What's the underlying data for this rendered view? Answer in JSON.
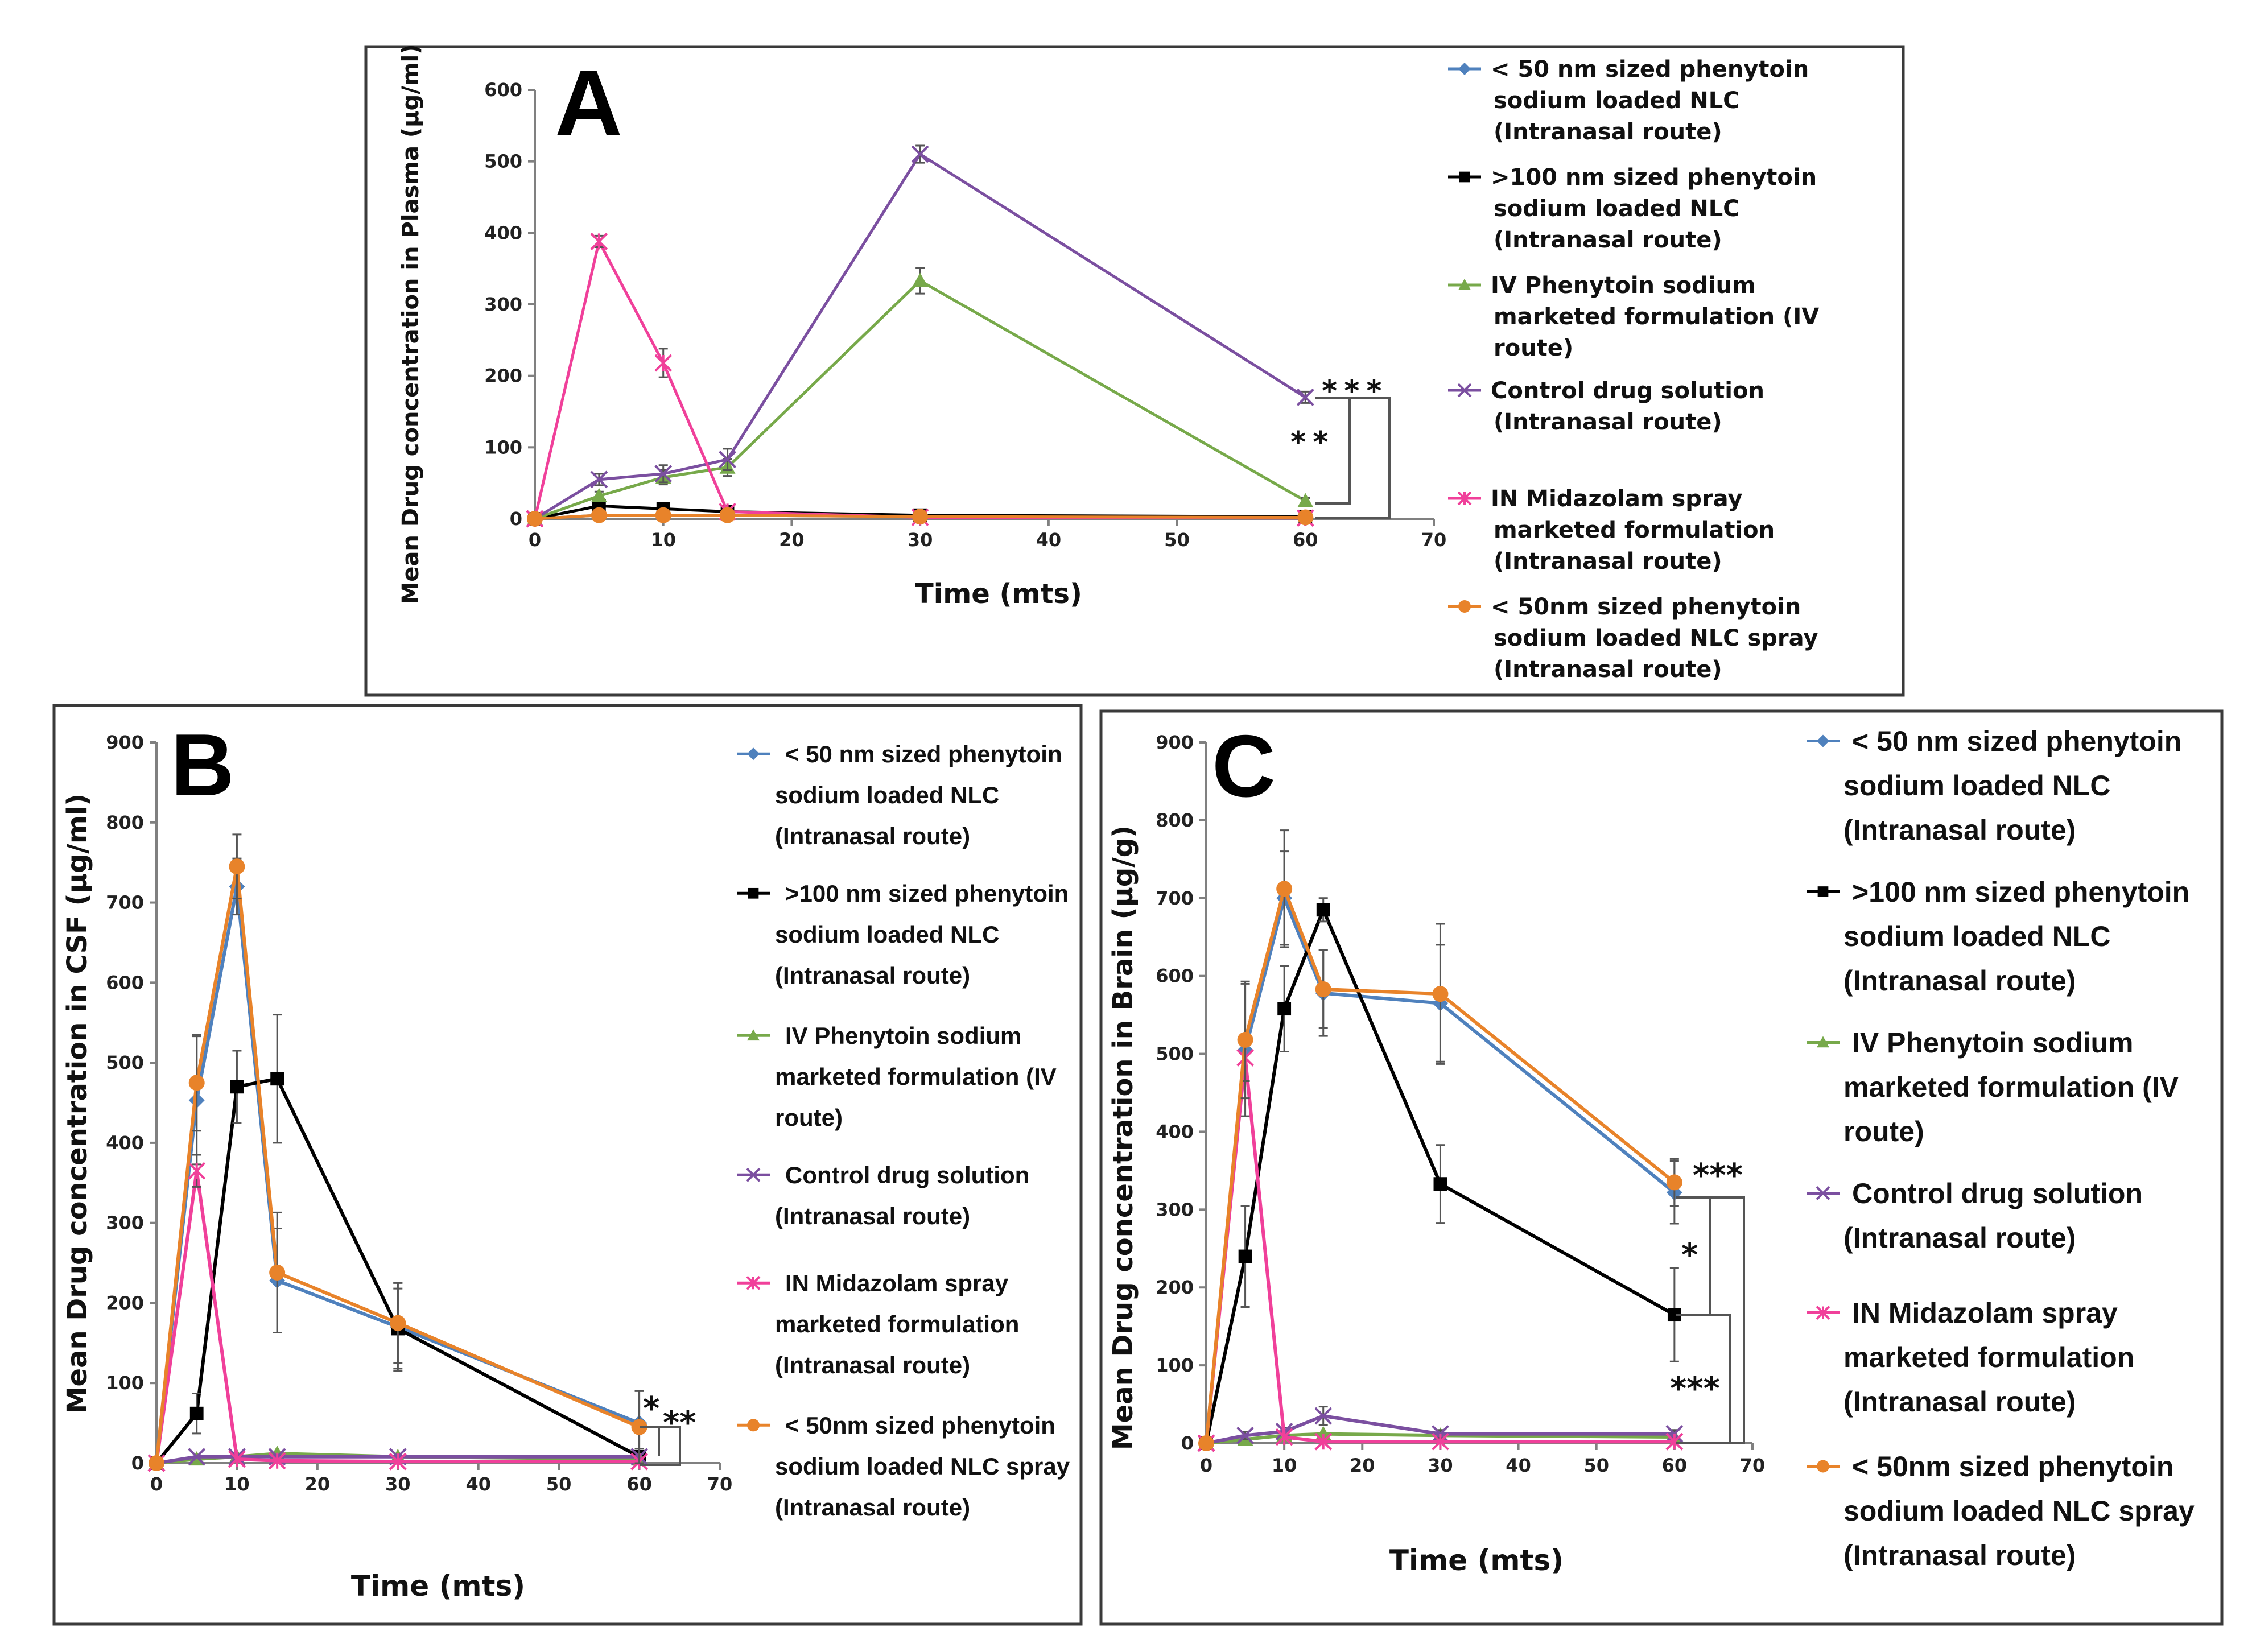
{
  "series_styles": [
    {
      "key": "s50",
      "color": "#4F81BD",
      "marker": "diamond"
    },
    {
      "key": "s100",
      "color": "#000000",
      "marker": "square"
    },
    {
      "key": "iv",
      "color": "#77A94A",
      "marker": "triangle"
    },
    {
      "key": "ctrl",
      "color": "#7B4FA0",
      "marker": "x"
    },
    {
      "key": "mid",
      "color": "#F0409A",
      "marker": "star"
    },
    {
      "key": "spray",
      "color": "#E8832A",
      "marker": "circle"
    }
  ],
  "chart_data": [
    {
      "panel": "A",
      "type": "line",
      "xlabel": "Time (mts)",
      "ylabel": "Mean Drug concentration in Plasma (µg/ml)",
      "xlim": [
        0,
        70
      ],
      "ylim": [
        0,
        600
      ],
      "xticks": [
        0,
        10,
        20,
        30,
        40,
        50,
        60,
        70
      ],
      "yticks": [
        0,
        100,
        200,
        300,
        400,
        500,
        600
      ],
      "legend": [
        [
          "< 50 nm sized phenytoin",
          "sodium loaded NLC",
          "(Intranasal route)"
        ],
        [
          ">100 nm sized phenytoin",
          "sodium loaded NLC",
          "(Intranasal route)"
        ],
        [
          "IV Phenytoin sodium",
          "marketed formulation (IV",
          "route)"
        ],
        [
          "Control drug solution",
          "(Intranasal route)"
        ],
        [
          "IN Midazolam spray",
          "marketed formulation",
          "(Intranasal route)"
        ],
        [
          "< 50nm sized phenytoin",
          "sodium loaded NLC spray",
          "(Intranasal route)"
        ]
      ],
      "series": [
        {
          "name": "< 50 nm sized phenytoin sodium loaded NLC (Intranasal route)",
          "x": [
            0,
            5,
            10,
            15,
            30,
            60
          ],
          "y": [
            0,
            5,
            5,
            5,
            3,
            2
          ]
        },
        {
          "name": ">100 nm sized phenytoin sodium loaded NLC (Intranasal route)",
          "x": [
            0,
            5,
            10,
            15,
            30,
            60
          ],
          "y": [
            0,
            18,
            14,
            10,
            5,
            3
          ]
        },
        {
          "name": "IV Phenytoin sodium marketed formulation (IV route)",
          "x": [
            0,
            5,
            10,
            15,
            30,
            60
          ],
          "y": [
            0,
            32,
            58,
            72,
            333,
            25
          ],
          "err": [
            0,
            6,
            10,
            12,
            18,
            4
          ]
        },
        {
          "name": "Control drug solution (Intranasal route)",
          "x": [
            0,
            5,
            10,
            15,
            30,
            60
          ],
          "y": [
            0,
            55,
            63,
            83,
            510,
            170
          ],
          "err": [
            0,
            8,
            12,
            15,
            12,
            8
          ]
        },
        {
          "name": "IN Midazolam spray marketed formulation (Intranasal route)",
          "x": [
            0,
            5,
            10,
            15,
            30,
            60
          ],
          "y": [
            0,
            388,
            218,
            10,
            2,
            1
          ],
          "err": [
            0,
            8,
            20,
            5,
            0,
            0
          ]
        },
        {
          "name": "< 50nm sized phenytoin sodium loaded NLC spray (Intranasal route)",
          "x": [
            0,
            5,
            10,
            15,
            30,
            60
          ],
          "y": [
            0,
            5,
            5,
            5,
            3,
            2
          ]
        }
      ],
      "significance": [
        "***",
        "**"
      ]
    },
    {
      "panel": "B",
      "type": "line",
      "xlabel": "Time (mts)",
      "ylabel": "Mean Drug concentration in CSF (µg/ml)",
      "xlim": [
        0,
        70
      ],
      "ylim": [
        0,
        900
      ],
      "xticks": [
        0,
        10,
        20,
        30,
        40,
        50,
        60,
        70
      ],
      "yticks": [
        0,
        100,
        200,
        300,
        400,
        500,
        600,
        700,
        800,
        900
      ],
      "legend": [
        [
          "< 50 nm sized phenytoin",
          "sodium loaded NLC",
          "(Intranasal route)"
        ],
        [
          ">100 nm sized phenytoin",
          "sodium loaded NLC",
          "(Intranasal route)"
        ],
        [
          "IV Phenytoin sodium",
          "marketed formulation (IV",
          "route)"
        ],
        [
          "Control drug solution",
          "(Intranasal route)"
        ],
        [
          "IN Midazolam spray",
          "marketed formulation",
          "(Intranasal route)"
        ],
        [
          "< 50nm sized phenytoin",
          "sodium loaded NLC spray",
          "(Intranasal route)"
        ]
      ],
      "series": [
        {
          "name": "< 50 nm sized phenytoin sodium loaded NLC (Intranasal route)",
          "x": [
            0,
            5,
            10,
            15,
            30,
            60
          ],
          "y": [
            0,
            453,
            720,
            228,
            170,
            50
          ],
          "err": [
            0,
            80,
            35,
            65,
            55,
            40
          ]
        },
        {
          "name": ">100 nm sized phenytoin sodium loaded NLC (Intranasal route)",
          "x": [
            0,
            5,
            10,
            15,
            30,
            60
          ],
          "y": [
            0,
            62,
            470,
            480,
            168,
            8
          ],
          "err": [
            0,
            25,
            45,
            80,
            50,
            10
          ]
        },
        {
          "name": "IV Phenytoin sodium marketed formulation (IV route)",
          "x": [
            0,
            5,
            10,
            15,
            30,
            60
          ],
          "y": [
            0,
            5,
            8,
            12,
            8,
            5
          ]
        },
        {
          "name": "Control drug solution (Intranasal route)",
          "x": [
            0,
            5,
            10,
            15,
            30,
            60
          ],
          "y": [
            0,
            8,
            8,
            8,
            8,
            8
          ]
        },
        {
          "name": "IN Midazolam spray marketed formulation (Intranasal route)",
          "x": [
            0,
            5,
            10,
            15,
            30,
            60
          ],
          "y": [
            0,
            365,
            5,
            3,
            2,
            2
          ],
          "err": [
            0,
            20,
            0,
            0,
            0,
            0
          ]
        },
        {
          "name": "< 50nm sized phenytoin sodium loaded NLC spray (Intranasal route)",
          "x": [
            0,
            5,
            10,
            15,
            30,
            60
          ],
          "y": [
            0,
            475,
            745,
            238,
            175,
            45
          ],
          "err": [
            0,
            60,
            40,
            75,
            50,
            45
          ]
        }
      ],
      "significance": [
        "*",
        "**"
      ]
    },
    {
      "panel": "C",
      "type": "line",
      "xlabel": "Time (mts)",
      "ylabel": "Mean Drug concentration in Brain (µg/g)",
      "xlim": [
        0,
        70
      ],
      "ylim": [
        0,
        900
      ],
      "xticks": [
        0,
        10,
        20,
        30,
        40,
        50,
        60,
        70
      ],
      "yticks": [
        0,
        100,
        200,
        300,
        400,
        500,
        600,
        700,
        800,
        900
      ],
      "legend": [
        [
          "< 50 nm sized phenytoin",
          "sodium loaded NLC",
          "(Intranasal route)"
        ],
        [
          ">100 nm sized phenytoin",
          "sodium loaded NLC",
          "(Intranasal route)"
        ],
        [
          "IV Phenytoin sodium",
          "marketed formulation (IV",
          "route)"
        ],
        [
          "Control drug solution",
          "(Intranasal route)"
        ],
        [
          "IN Midazolam spray",
          "marketed formulation",
          "(Intranasal route)"
        ],
        [
          "< 50nm sized phenytoin",
          "sodium loaded NLC spray",
          "(Intranasal route)"
        ]
      ],
      "series": [
        {
          "name": "< 50 nm sized phenytoin sodium loaded NLC (Intranasal route)",
          "x": [
            0,
            5,
            10,
            15,
            30,
            60
          ],
          "y": [
            0,
            505,
            700,
            578,
            565,
            322
          ],
          "err": [
            0,
            85,
            60,
            55,
            75,
            40
          ]
        },
        {
          "name": ">100 nm sized phenytoin sodium loaded NLC (Intranasal route)",
          "x": [
            0,
            5,
            10,
            15,
            30,
            60
          ],
          "y": [
            0,
            240,
            558,
            685,
            333,
            165
          ],
          "err": [
            0,
            65,
            55,
            15,
            50,
            60
          ]
        },
        {
          "name": "IV Phenytoin sodium marketed formulation (IV route)",
          "x": [
            0,
            5,
            10,
            15,
            30,
            60
          ],
          "y": [
            0,
            5,
            10,
            12,
            10,
            8
          ]
        },
        {
          "name": "Control drug solution (Intranasal route)",
          "x": [
            0,
            5,
            10,
            15,
            30,
            60
          ],
          "y": [
            0,
            10,
            15,
            35,
            12,
            12
          ],
          "err": [
            0,
            5,
            5,
            12,
            5,
            5
          ]
        },
        {
          "name": "IN Midazolam spray marketed formulation (Intranasal route)",
          "x": [
            0,
            5,
            10,
            15,
            30,
            60
          ],
          "y": [
            0,
            495,
            8,
            2,
            2,
            2
          ],
          "err": [
            0,
            30,
            0,
            0,
            0,
            0
          ]
        },
        {
          "name": "< 50nm sized phenytoin sodium loaded NLC spray (Intranasal route)",
          "x": [
            0,
            5,
            10,
            15,
            30,
            60
          ],
          "y": [
            0,
            518,
            712,
            583,
            577,
            335
          ],
          "err": [
            0,
            75,
            75,
            50,
            90,
            30
          ]
        }
      ],
      "significance": [
        "***",
        "*",
        "***"
      ]
    }
  ]
}
